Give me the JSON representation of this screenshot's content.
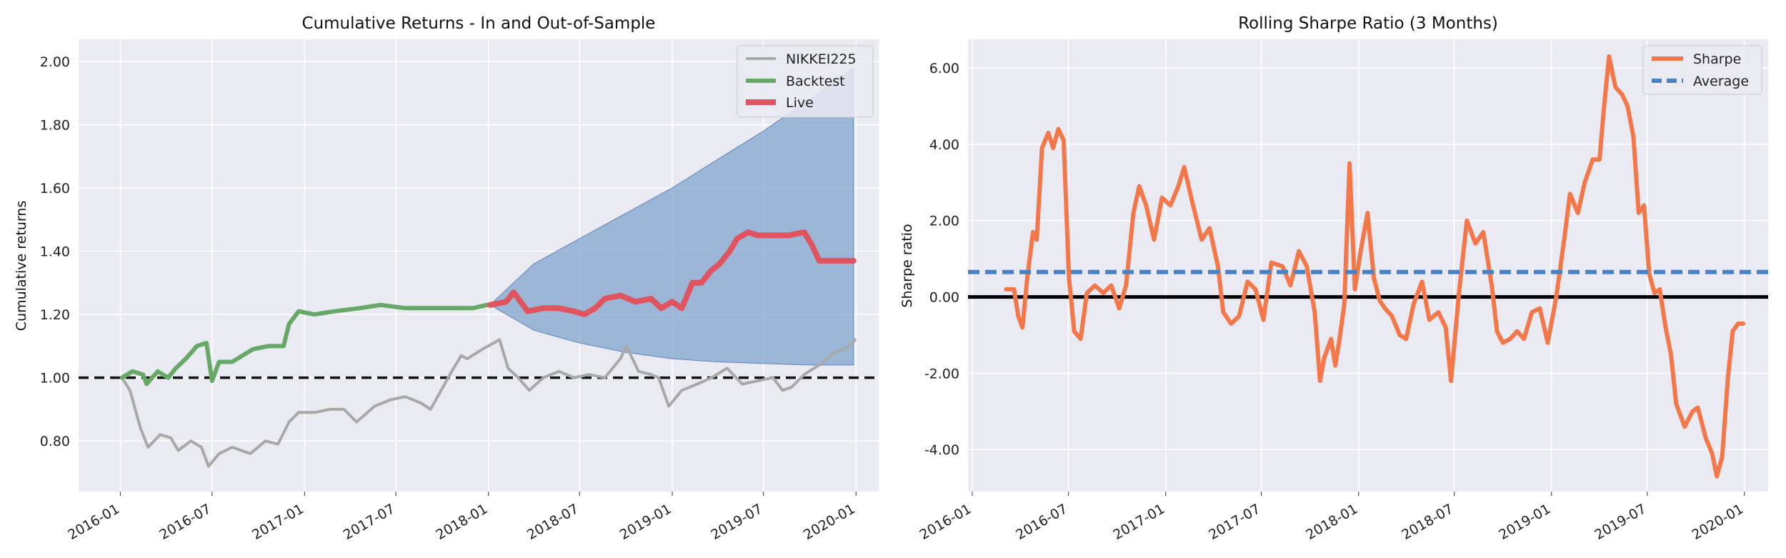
{
  "chart_data": [
    {
      "type": "line",
      "title": "Cumulative Returns - In and Out-of-Sample",
      "xlabel": "",
      "ylabel": "Cumulative returns",
      "ylim": [
        0.64,
        2.07
      ],
      "yticks": [
        "0.80",
        "1.00",
        "1.20",
        "1.40",
        "1.60",
        "1.80",
        "2.00"
      ],
      "ytick_values": [
        0.8,
        1.0,
        1.2,
        1.4,
        1.6,
        1.8,
        2.0
      ],
      "xlim": [
        "2015-10-10",
        "2020-02-15"
      ],
      "xticks": [
        "2016-01",
        "2016-07",
        "2017-01",
        "2017-07",
        "2018-01",
        "2018-07",
        "2019-01",
        "2019-07",
        "2020-01"
      ],
      "xtick_dates": [
        "2016-01-01",
        "2016-07-01",
        "2017-01-01",
        "2017-07-01",
        "2018-01-01",
        "2018-07-01",
        "2019-01-01",
        "2019-07-01",
        "2020-01-01"
      ],
      "grid": true,
      "legend_position": "top-right",
      "reference_line": {
        "y": 1.0,
        "style": "dashed",
        "color": "#111111"
      },
      "cone": {
        "color": "#7aa0cc",
        "x": [
          "2018-01-04",
          "2018-04-01",
          "2018-07-01",
          "2018-10-01",
          "2019-01-01",
          "2019-04-01",
          "2019-07-01",
          "2019-10-01",
          "2019-12-27"
        ],
        "upper": [
          1.23,
          1.36,
          1.44,
          1.52,
          1.6,
          1.69,
          1.78,
          1.88,
          1.98
        ],
        "lower": [
          1.23,
          1.15,
          1.11,
          1.08,
          1.06,
          1.05,
          1.045,
          1.04,
          1.04
        ]
      },
      "series": [
        {
          "name": "NIKKEI225",
          "color": "#a8a8a8",
          "x": [
            "2016-01-04",
            "2016-01-20",
            "2016-02-10",
            "2016-02-25",
            "2016-03-20",
            "2016-04-10",
            "2016-04-25",
            "2016-05-20",
            "2016-06-10",
            "2016-06-24",
            "2016-07-15",
            "2016-08-10",
            "2016-09-15",
            "2016-10-15",
            "2016-11-09",
            "2016-12-01",
            "2016-12-20",
            "2017-01-20",
            "2017-02-20",
            "2017-03-20",
            "2017-04-14",
            "2017-05-20",
            "2017-06-20",
            "2017-07-20",
            "2017-08-20",
            "2017-09-08",
            "2017-09-29",
            "2017-10-20",
            "2017-11-08",
            "2017-11-20",
            "2017-12-20",
            "2018-01-23",
            "2018-02-09",
            "2018-03-01",
            "2018-03-23",
            "2018-04-20",
            "2018-05-21",
            "2018-06-20",
            "2018-07-20",
            "2018-08-20",
            "2018-09-20",
            "2018-10-02",
            "2018-10-26",
            "2018-11-20",
            "2018-12-05",
            "2018-12-25",
            "2019-01-20",
            "2019-02-20",
            "2019-03-20",
            "2019-04-20",
            "2019-05-20",
            "2019-06-20",
            "2019-07-20",
            "2019-08-08",
            "2019-08-26",
            "2019-09-20",
            "2019-10-20",
            "2019-11-20",
            "2019-12-20",
            "2019-12-30"
          ],
          "values": [
            1.0,
            0.96,
            0.84,
            0.78,
            0.82,
            0.81,
            0.77,
            0.8,
            0.78,
            0.72,
            0.76,
            0.78,
            0.76,
            0.8,
            0.79,
            0.86,
            0.89,
            0.89,
            0.9,
            0.9,
            0.86,
            0.91,
            0.93,
            0.94,
            0.92,
            0.9,
            0.96,
            1.02,
            1.07,
            1.06,
            1.09,
            1.12,
            1.03,
            1.0,
            0.96,
            1.0,
            1.02,
            1.0,
            1.01,
            1.0,
            1.06,
            1.1,
            1.02,
            1.01,
            1.0,
            0.91,
            0.96,
            0.98,
            1.0,
            1.03,
            0.98,
            0.99,
            1.0,
            0.96,
            0.97,
            1.01,
            1.04,
            1.08,
            1.1,
            1.12
          ]
        },
        {
          "name": "Backtest",
          "color": "#66a866",
          "x": [
            "2016-01-04",
            "2016-01-25",
            "2016-02-15",
            "2016-02-22",
            "2016-03-15",
            "2016-04-05",
            "2016-04-20",
            "2016-05-10",
            "2016-06-01",
            "2016-06-20",
            "2016-07-01",
            "2016-07-15",
            "2016-08-10",
            "2016-09-20",
            "2016-10-20",
            "2016-11-20",
            "2016-12-01",
            "2016-12-20",
            "2017-01-20",
            "2017-03-01",
            "2017-04-20",
            "2017-06-01",
            "2017-07-20",
            "2017-09-01",
            "2017-10-20",
            "2017-12-01",
            "2017-12-29"
          ],
          "values": [
            1.0,
            1.02,
            1.01,
            0.98,
            1.02,
            1.0,
            1.03,
            1.06,
            1.1,
            1.11,
            0.99,
            1.05,
            1.05,
            1.09,
            1.1,
            1.1,
            1.17,
            1.21,
            1.2,
            1.21,
            1.22,
            1.23,
            1.22,
            1.22,
            1.22,
            1.22,
            1.23
          ]
        },
        {
          "name": "Live",
          "color": "#e05460",
          "x": [
            "2018-01-04",
            "2018-02-05",
            "2018-02-20",
            "2018-03-20",
            "2018-04-20",
            "2018-05-20",
            "2018-06-20",
            "2018-07-10",
            "2018-08-01",
            "2018-08-20",
            "2018-09-20",
            "2018-10-20",
            "2018-11-20",
            "2018-12-10",
            "2019-01-01",
            "2019-01-20",
            "2019-02-10",
            "2019-02-28",
            "2019-03-20",
            "2019-04-05",
            "2019-04-25",
            "2019-05-10",
            "2019-06-01",
            "2019-06-20",
            "2019-07-20",
            "2019-08-20",
            "2019-09-20",
            "2019-10-05",
            "2019-10-20",
            "2019-11-20",
            "2019-12-20",
            "2019-12-27"
          ],
          "values": [
            1.23,
            1.24,
            1.27,
            1.21,
            1.22,
            1.22,
            1.21,
            1.2,
            1.22,
            1.25,
            1.26,
            1.24,
            1.25,
            1.22,
            1.24,
            1.22,
            1.3,
            1.3,
            1.34,
            1.36,
            1.4,
            1.44,
            1.46,
            1.45,
            1.45,
            1.45,
            1.46,
            1.42,
            1.37,
            1.37,
            1.37,
            1.37
          ]
        }
      ]
    },
    {
      "type": "line",
      "title": "Rolling Sharpe Ratio (3 Months)",
      "xlabel": "",
      "ylabel": "Sharpe ratio",
      "ylim": [
        -5.1,
        6.75
      ],
      "yticks": [
        "-4.00",
        "-2.00",
        "0.00",
        "2.00",
        "4.00",
        "6.00"
      ],
      "ytick_values": [
        -4,
        -2,
        0,
        2,
        4,
        6
      ],
      "xlim": [
        "2015-12-24",
        "2020-02-15"
      ],
      "xticks": [
        "2016-01",
        "2016-07",
        "2017-01",
        "2017-07",
        "2018-01",
        "2018-07",
        "2019-01",
        "2019-07",
        "2020-01"
      ],
      "xtick_dates": [
        "2016-01-01",
        "2016-07-01",
        "2017-01-01",
        "2017-07-01",
        "2018-01-01",
        "2018-07-01",
        "2019-01-01",
        "2019-07-01",
        "2020-01-01"
      ],
      "grid": true,
      "legend_position": "top-right",
      "reference_line": {
        "y": 0.0,
        "style": "solid",
        "color": "#000000"
      },
      "series": [
        {
          "name": "Sharpe",
          "color": "#f4774a",
          "x": [
            "2016-03-05",
            "2016-03-20",
            "2016-03-28",
            "2016-04-05",
            "2016-04-14",
            "2016-04-25",
            "2016-05-02",
            "2016-05-12",
            "2016-05-24",
            "2016-06-02",
            "2016-06-12",
            "2016-06-22",
            "2016-07-02",
            "2016-07-12",
            "2016-07-24",
            "2016-08-05",
            "2016-08-20",
            "2016-09-05",
            "2016-09-20",
            "2016-10-05",
            "2016-10-18",
            "2016-11-01",
            "2016-11-12",
            "2016-11-25",
            "2016-12-10",
            "2016-12-25",
            "2017-01-10",
            "2017-01-25",
            "2017-02-05",
            "2017-02-20",
            "2017-03-10",
            "2017-03-25",
            "2017-04-10",
            "2017-04-20",
            "2017-05-05",
            "2017-05-20",
            "2017-06-05",
            "2017-06-20",
            "2017-07-05",
            "2017-07-20",
            "2017-08-10",
            "2017-08-25",
            "2017-09-10",
            "2017-09-25",
            "2017-10-10",
            "2017-10-20",
            "2017-10-28",
            "2017-11-10",
            "2017-11-18",
            "2017-11-25",
            "2017-12-05",
            "2017-12-15",
            "2017-12-25",
            "2018-01-05",
            "2018-01-18",
            "2018-01-30",
            "2018-02-10",
            "2018-02-20",
            "2018-03-05",
            "2018-03-20",
            "2018-04-01",
            "2018-04-15",
            "2018-05-01",
            "2018-05-15",
            "2018-06-01",
            "2018-06-15",
            "2018-06-25",
            "2018-07-10",
            "2018-07-25",
            "2018-08-10",
            "2018-08-25",
            "2018-09-10",
            "2018-09-20",
            "2018-10-01",
            "2018-10-15",
            "2018-10-28",
            "2018-11-10",
            "2018-11-25",
            "2018-12-10",
            "2018-12-25",
            "2019-01-10",
            "2019-01-25",
            "2019-02-05",
            "2019-02-20",
            "2019-03-05",
            "2019-03-20",
            "2019-04-02",
            "2019-04-10",
            "2019-04-20",
            "2019-05-02",
            "2019-05-15",
            "2019-05-25",
            "2019-06-05",
            "2019-06-15",
            "2019-06-25",
            "2019-07-05",
            "2019-07-15",
            "2019-07-25",
            "2019-08-05",
            "2019-08-15",
            "2019-08-25",
            "2019-09-10",
            "2019-09-25",
            "2019-10-05",
            "2019-10-20",
            "2019-11-01",
            "2019-11-10",
            "2019-11-20",
            "2019-12-01",
            "2019-12-10",
            "2019-12-20",
            "2019-12-30"
          ],
          "values": [
            0.2,
            0.2,
            -0.5,
            -0.8,
            0.5,
            1.7,
            1.5,
            3.9,
            4.3,
            3.9,
            4.4,
            4.1,
            0.5,
            -0.9,
            -1.1,
            0.1,
            0.3,
            0.1,
            0.3,
            -0.3,
            0.3,
            2.2,
            2.9,
            2.4,
            1.5,
            2.6,
            2.4,
            2.9,
            3.4,
            2.5,
            1.5,
            1.8,
            0.8,
            -0.4,
            -0.7,
            -0.5,
            0.4,
            0.2,
            -0.6,
            0.9,
            0.8,
            0.3,
            1.2,
            0.8,
            -0.4,
            -2.2,
            -1.6,
            -1.1,
            -1.8,
            -1.2,
            -0.2,
            3.5,
            0.2,
            1.2,
            2.2,
            0.5,
            -0.1,
            -0.3,
            -0.5,
            -1.0,
            -1.1,
            -0.2,
            0.4,
            -0.6,
            -0.4,
            -0.8,
            -2.2,
            0.1,
            2.0,
            1.4,
            1.7,
            0.3,
            -0.9,
            -1.2,
            -1.1,
            -0.9,
            -1.1,
            -0.4,
            -0.3,
            -1.2,
            0.0,
            1.5,
            2.7,
            2.2,
            3.0,
            3.6,
            3.6,
            4.9,
            6.3,
            5.5,
            5.3,
            5.0,
            4.2,
            2.2,
            2.4,
            0.6,
            0.1,
            0.2,
            -0.8,
            -1.5,
            -2.8,
            -3.4,
            -3.0,
            -2.9,
            -3.7,
            -4.1,
            -4.7,
            -4.2,
            -2.1,
            -0.9,
            -0.7,
            -0.7
          ]
        },
        {
          "name": "Average",
          "color": "#4a82c4",
          "style": "dashed",
          "x": [
            "2015-12-24",
            "2020-02-15"
          ],
          "values": [
            0.65,
            0.65
          ]
        }
      ]
    }
  ]
}
